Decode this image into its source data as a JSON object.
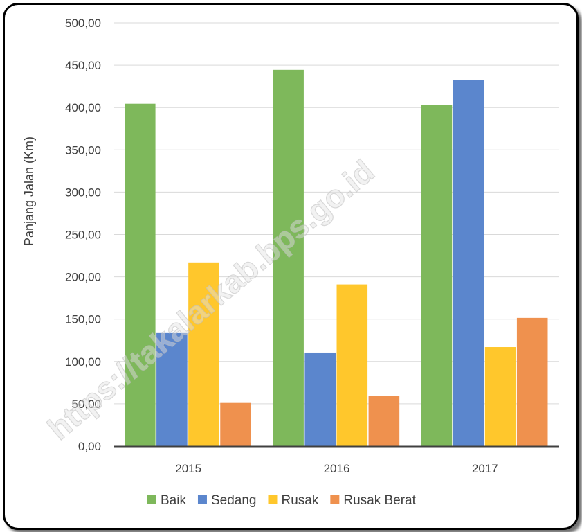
{
  "chart_data": {
    "type": "bar",
    "title": "",
    "xlabel": "",
    "ylabel": "Panjang Jalan (Km)",
    "categories": [
      "2015",
      "2016",
      "2017"
    ],
    "ylim": [
      0,
      500
    ],
    "yticks": [
      "0,00",
      "50,00",
      "100,00",
      "150,00",
      "200,00",
      "250,00",
      "300,00",
      "350,00",
      "400,00",
      "450,00",
      "500,00"
    ],
    "grid": true,
    "legend_position": "bottom",
    "series": [
      {
        "name": "Baik",
        "color": "#7EB85B",
        "values": [
          404.5,
          444.5,
          403.0
        ]
      },
      {
        "name": "Sedang",
        "color": "#5B86CD",
        "values": [
          133.5,
          110.5,
          432.5
        ]
      },
      {
        "name": "Rusak",
        "color": "#FFC72C",
        "values": [
          217.0,
          191.0,
          117.0
        ]
      },
      {
        "name": "Rusak Berat",
        "color": "#EF914E",
        "values": [
          51.0,
          59.0,
          151.5
        ]
      }
    ]
  },
  "watermark": "https://takalarkab.bps.go.id"
}
